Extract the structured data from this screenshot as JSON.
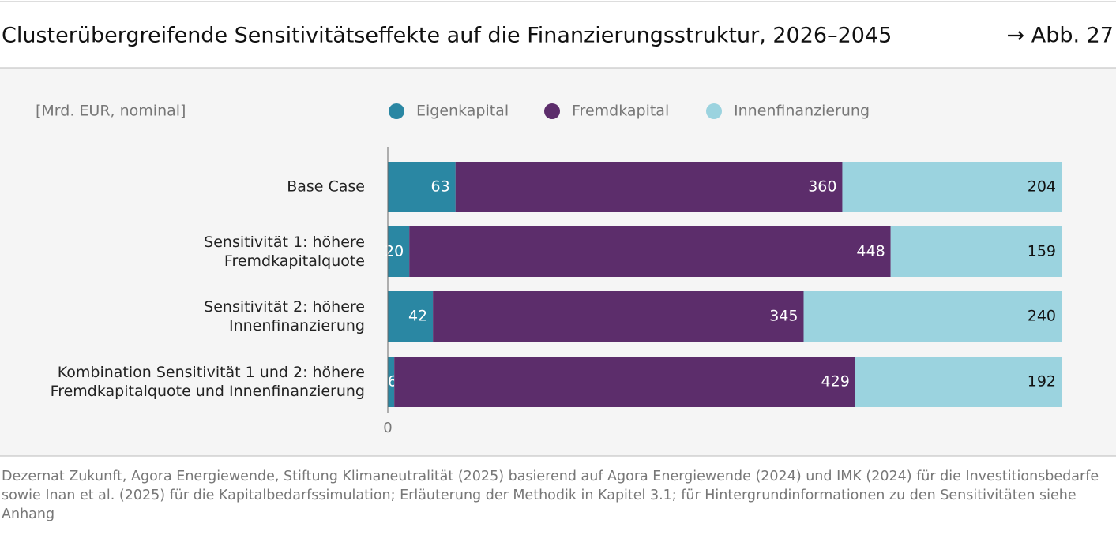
{
  "chart_data": {
    "type": "stacked-bar-horizontal",
    "title": "Clusterübergreifende Sensitivitätseffekte auf die Finanzierungsstruktur, 2026–2045",
    "figure_ref": "→ Abb. 27",
    "unit_label": "[Mrd. EUR, nominal]",
    "categories": [
      "Base Case",
      "Sensitivität 1: höhere\nFremdkapitalquote",
      "Sensitivität 2: höhere\nInnenfinanzierung",
      "Kombination Sensitivität 1 und 2: höhere\nFremdkapitalquote und Innenfinanzierung"
    ],
    "series": [
      {
        "name": "Eigenkapital",
        "color": "#2a87a3",
        "values": [
          63,
          20,
          42,
          6
        ]
      },
      {
        "name": "Fremdkapital",
        "color": "#5c2d6b",
        "values": [
          360,
          448,
          345,
          429
        ]
      },
      {
        "name": "Innenfinanzierung",
        "color": "#9bd3df",
        "values": [
          204,
          159,
          240,
          192
        ]
      }
    ],
    "xlim": [
      0,
      627
    ],
    "xticks": [
      0
    ],
    "source": "Dezernat Zukunft, Agora Energiewende, Stiftung Klimaneutralität (2025) basierend auf Agora Energiewende (2024) und IMK (2024) für die Investitionsbedarfe sowie Inan et al. (2025) für die Kapitalbedarfssimulation; Erläuterung der Methodik in Kapitel 3.1; für Hintergrundinformationen zu den Sensitivitäten siehe Anhang"
  }
}
